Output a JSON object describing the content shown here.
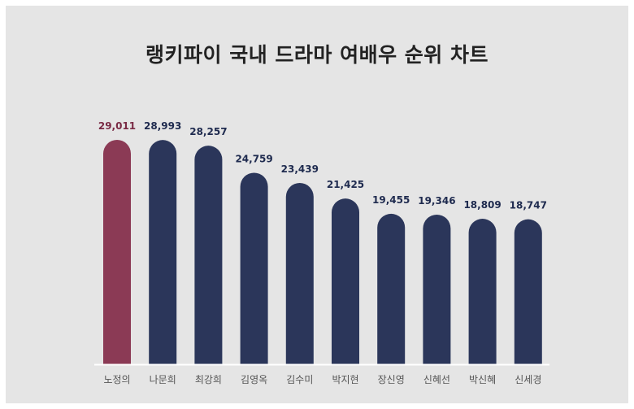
{
  "chart_data": {
    "type": "bar",
    "title": "랭키파이 국내 드라마 여배우 순위 차트",
    "categories": [
      "노정의",
      "나문희",
      "최강희",
      "김영옥",
      "김수미",
      "박지현",
      "장신영",
      "신혜선",
      "박신혜",
      "신세경"
    ],
    "values": [
      29011,
      28993,
      28257,
      24759,
      23439,
      21425,
      19455,
      19346,
      18809,
      18747
    ],
    "value_labels": [
      "29,011",
      "28,993",
      "28,257",
      "24,759",
      "23,439",
      "21,425",
      "19,455",
      "19,346",
      "18,809",
      "18,747"
    ],
    "xlabel": "",
    "ylabel": "",
    "ylim": [
      0,
      29011
    ],
    "grid": false,
    "colors": {
      "highlight": "#8b3a55",
      "bar": "#2b365a",
      "highlight_label": "#7a2b45",
      "label": "#1f2b4f",
      "background": "#e5e5e5",
      "baseline": "#ffffff"
    }
  }
}
